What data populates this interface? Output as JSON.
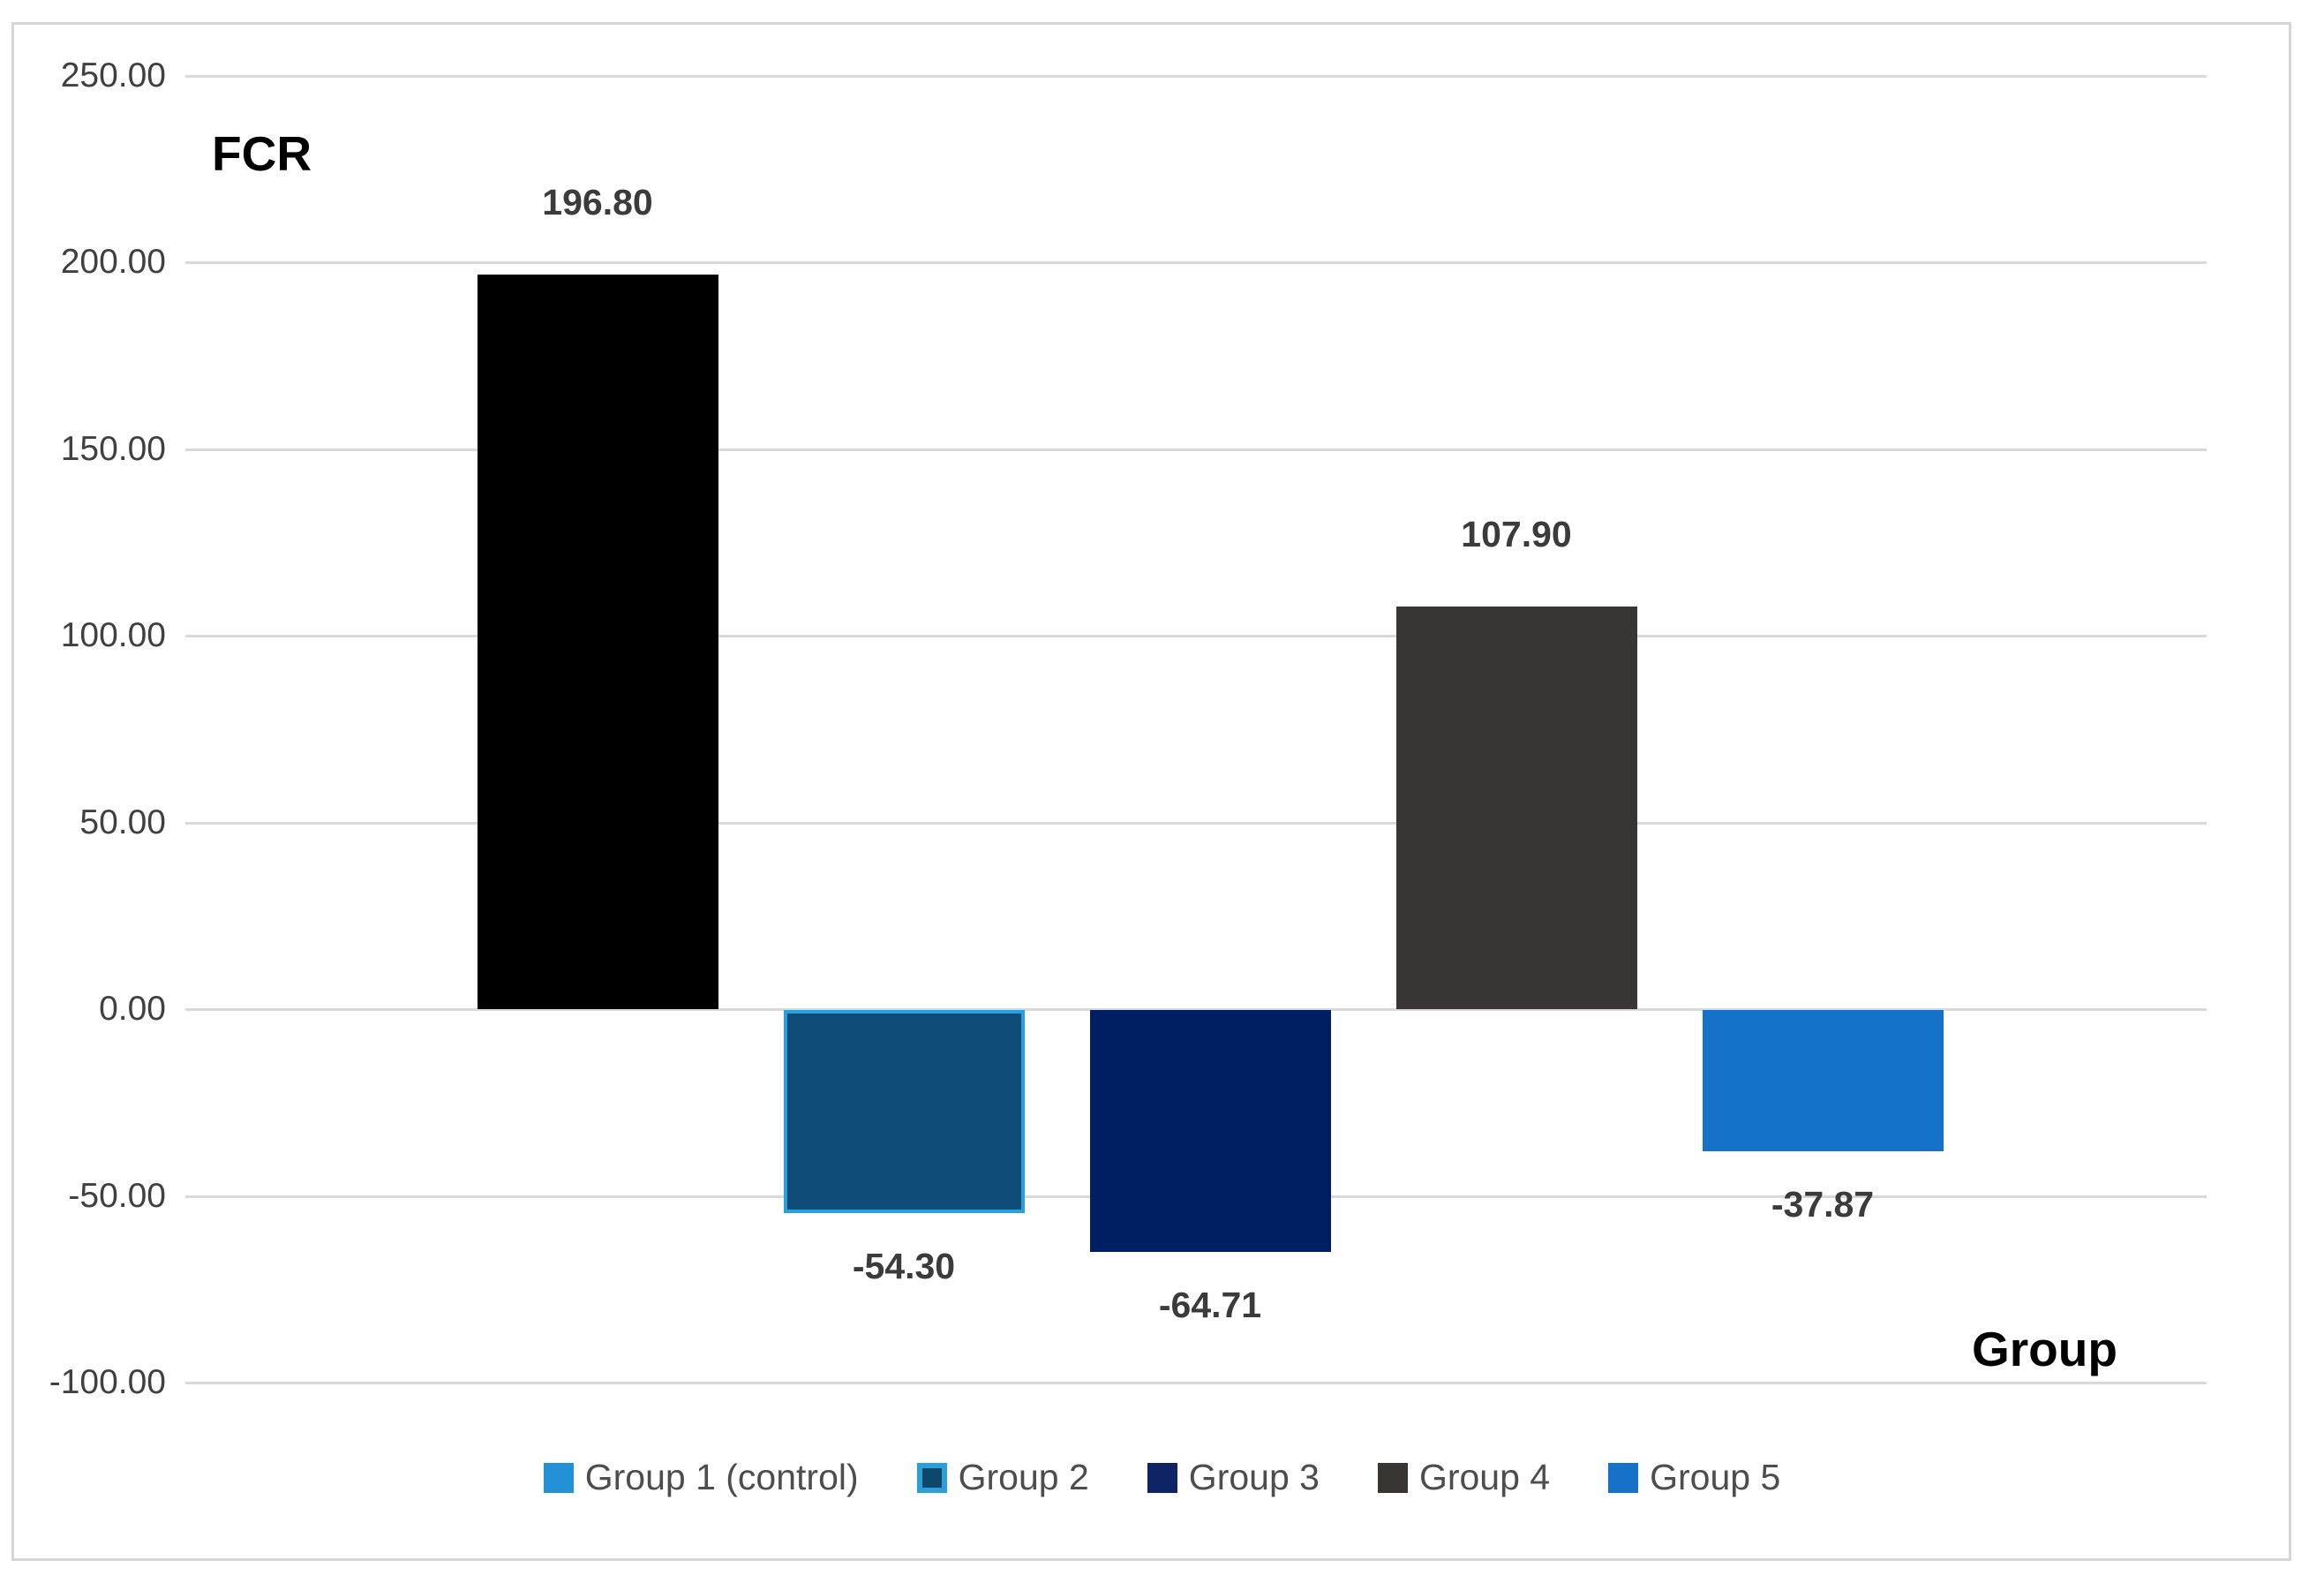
{
  "chart_data": {
    "type": "bar",
    "title": "",
    "ylabel": "FCR",
    "xlabel": "Group",
    "categories": [
      "Group 1 (control)",
      "Group 2",
      "Group 3",
      "Group 4",
      "Group 5"
    ],
    "values": [
      196.8,
      -54.3,
      -64.71,
      107.9,
      -37.87
    ],
    "data_labels": [
      "196.80",
      "-54.30",
      "-64.71",
      "107.90",
      "-37.87"
    ],
    "ylim": [
      -100,
      250
    ],
    "ytick_labels": [
      "250.00",
      "200.00",
      "150.00",
      "100.00",
      "50.00",
      "0.00",
      "-50.00",
      "-100.00"
    ],
    "ytick_values": [
      250,
      200,
      150,
      100,
      50,
      0,
      -50,
      -100
    ],
    "grid": true,
    "legend_position": "bottom",
    "bar_styles": [
      {
        "fill": "#000000",
        "border": ""
      },
      {
        "fill": "#0f4d79",
        "border": "#29a0dc"
      },
      {
        "fill": "#001f63",
        "border": ""
      },
      {
        "fill": "#393533",
        "border": ""
      },
      {
        "fill": "#1572c8",
        "border": ""
      }
    ],
    "legend": [
      {
        "label": "Group 1 (control)",
        "fill": "#2391d6",
        "border": ""
      },
      {
        "label": "Group 2",
        "fill": "#0d486b",
        "border": "#29a0dc"
      },
      {
        "label": "Group 3",
        "fill": "#0e2465",
        "border": ""
      },
      {
        "label": "Group 4",
        "fill": "#393533",
        "border": ""
      },
      {
        "label": "Group 5",
        "fill": "#1572c8",
        "border": ""
      }
    ],
    "colors": {
      "gridline": "#d9d9d9",
      "frame_border": "#d6d6d6",
      "tick_text": "#404040",
      "data_label_text": "#3b3b3b",
      "legend_text": "#4d4d4d",
      "axis_title_text": "#000000"
    }
  }
}
